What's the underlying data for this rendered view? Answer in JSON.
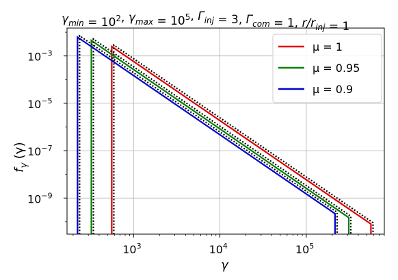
{
  "chart_data": {
    "type": "line",
    "title_tex": {
      "segments": [
        {
          "t": "γ",
          "sub": "min"
        },
        {
          "t": " = 10",
          "sup": "2"
        },
        {
          "t": ", "
        },
        {
          "t": "γ",
          "sub": "max"
        },
        {
          "t": " = 10",
          "sup": "5"
        },
        {
          "t": ", "
        },
        {
          "t": "Γ",
          "sub": "inj"
        },
        {
          "t": " = 3, "
        },
        {
          "t": "Γ",
          "sub": "com"
        },
        {
          "t": " = 1, "
        },
        {
          "t": "r/r",
          "sub": "inj"
        },
        {
          "t": " = 1"
        }
      ]
    },
    "xlabel": "γ",
    "ylabel": "f_γ (γ)",
    "ylabel_parts": {
      "main": "f",
      "sub": "γ",
      "rest": " (γ)"
    },
    "xscale": "log",
    "yscale": "log",
    "xlim": [
      170,
      800000
    ],
    "ylim": [
      3e-11,
      0.015
    ],
    "x_ticks": [
      {
        "base": "10",
        "exp": "3",
        "value": 1000
      },
      {
        "base": "10",
        "exp": "4",
        "value": 10000
      },
      {
        "base": "10",
        "exp": "5",
        "value": 100000
      }
    ],
    "y_ticks": [
      {
        "base": "10",
        "exp": "−3",
        "value": 0.001
      },
      {
        "base": "10",
        "exp": "−5",
        "value": 1e-05
      },
      {
        "base": "10",
        "exp": "−7",
        "value": 1e-07
      },
      {
        "base": "10",
        "exp": "−9",
        "value": 1e-09
      }
    ],
    "grid": true,
    "legend_position": "top-right",
    "series": [
      {
        "name": "μ = 1",
        "color": "#e00000",
        "x_min": 560,
        "x_max": 560000,
        "y_at_min": 0.0025,
        "y_at_max": 8e-11,
        "dotted_overlay": true
      },
      {
        "name": "μ = 0.95",
        "color": "#008000",
        "x_min": 325,
        "x_max": 310000,
        "y_at_min": 0.0045,
        "y_at_max": 1.5e-10,
        "dotted_overlay": true
      },
      {
        "name": "μ = 0.9",
        "color": "#0000d0",
        "x_min": 225,
        "x_max": 215000,
        "y_at_min": 0.0062,
        "y_at_max": 2.2e-10,
        "dotted_overlay": true
      }
    ]
  }
}
